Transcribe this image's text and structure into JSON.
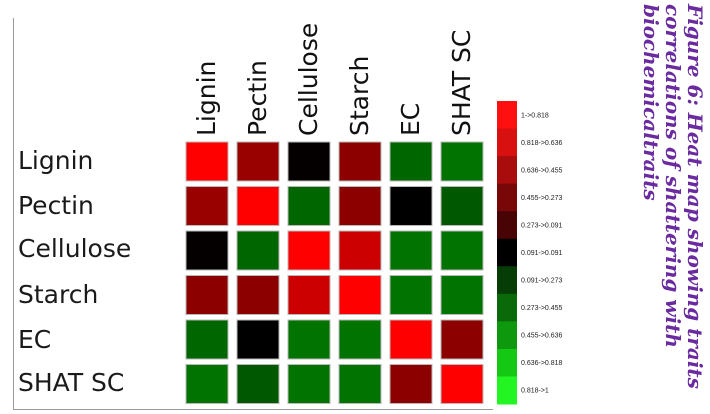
{
  "chart_data": {
    "type": "heatmap",
    "rows": [
      "Lignin",
      "Pectin",
      "Cellulose",
      "Starch",
      "EC",
      "SHAT SC"
    ],
    "columns": [
      "Lignin",
      "Pectin",
      "Cellulose",
      "Starch",
      "EC",
      "SHAT SC"
    ],
    "values": [
      [
        1.0,
        0.6,
        0.02,
        0.55,
        -0.4,
        -0.45
      ],
      [
        0.6,
        1.0,
        -0.4,
        0.55,
        0.0,
        -0.35
      ],
      [
        0.02,
        -0.4,
        1.0,
        0.8,
        -0.45,
        -0.45
      ],
      [
        0.55,
        0.55,
        0.8,
        1.0,
        -0.45,
        -0.45
      ],
      [
        -0.4,
        0.0,
        -0.45,
        -0.45,
        1.0,
        0.55
      ],
      [
        -0.45,
        -0.35,
        -0.45,
        -0.45,
        0.55,
        1.0
      ]
    ],
    "color_scale": {
      "low_color": "#00ff00",
      "mid_color": "#000000",
      "high_color": "#ff0000",
      "range": [
        -1,
        1
      ]
    },
    "legend": {
      "placement": "right",
      "bins": [
        {
          "label": "1->0.818",
          "color": "#ff1010"
        },
        {
          "label": "0.818->0.636",
          "color": "#d81010"
        },
        {
          "label": "0.636->0.455",
          "color": "#a80c0c"
        },
        {
          "label": "0.455->0.273",
          "color": "#780808"
        },
        {
          "label": "0.273->0.091",
          "color": "#480404"
        },
        {
          "label": "0.091->0.091",
          "color": "#000000"
        },
        {
          "label": "0.091->0.273",
          "color": "#063d06"
        },
        {
          "label": "0.273->0.455",
          "color": "#0a6a0a"
        },
        {
          "label": "0.455->0.636",
          "color": "#0e980e"
        },
        {
          "label": "0.636->0.818",
          "color": "#14c814"
        },
        {
          "label": "0.818->1",
          "color": "#22f522"
        }
      ]
    }
  },
  "caption": "Figure 6: Heat map showing traits correlations of shattering with biochemicaltraits",
  "colors": {
    "caption": "#6a2aa0",
    "cell_border": "#b8b8b8"
  }
}
